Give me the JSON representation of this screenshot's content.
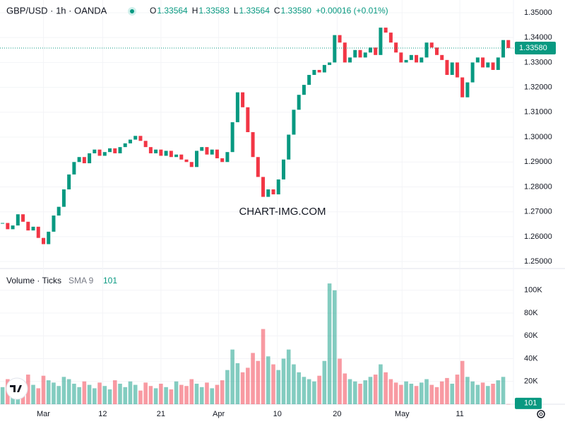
{
  "chart_data": [
    {
      "type": "candlestick",
      "title": "GBP/USD · 1h · OANDA",
      "quote": [
        {
          "label": "O",
          "value": "1.33564"
        },
        {
          "label": "H",
          "value": "1.33583"
        },
        {
          "label": "L",
          "value": "1.33564"
        },
        {
          "label": "C",
          "value": "1.33580"
        }
      ],
      "change": "+0.00016 (+0.01%)",
      "watermark": "CHART-IMG.COM",
      "up_color": "#089981",
      "down_color": "#f23645",
      "values": [
        1.2655,
        1.263,
        1.2645,
        1.269,
        1.266,
        1.2625,
        1.264,
        1.2595,
        1.257,
        1.262,
        1.2685,
        1.272,
        1.279,
        1.285,
        1.29,
        1.292,
        1.2895,
        1.2935,
        1.295,
        1.2925,
        1.294,
        1.2955,
        1.2935,
        1.296,
        1.2975,
        1.299,
        1.3005,
        1.2985,
        1.296,
        1.2935,
        1.295,
        1.2925,
        1.2945,
        1.292,
        1.293,
        1.291,
        1.29,
        1.288,
        1.2945,
        1.296,
        1.293,
        1.295,
        1.2915,
        1.29,
        1.294,
        1.306,
        1.318,
        1.312,
        1.302,
        1.292,
        1.284,
        1.276,
        1.279,
        1.277,
        1.283,
        1.291,
        1.301,
        1.311,
        1.317,
        1.321,
        1.325,
        1.327,
        1.326,
        1.329,
        1.33,
        1.341,
        1.338,
        1.33,
        1.332,
        1.335,
        1.332,
        1.334,
        1.336,
        1.333,
        1.344,
        1.342,
        1.338,
        1.334,
        1.33,
        1.331,
        1.333,
        1.33,
        1.332,
        1.338,
        1.336,
        1.333,
        1.331,
        1.325,
        1.33,
        1.324,
        1.316,
        1.322,
        1.33,
        1.332,
        1.328,
        1.33,
        1.327,
        1.332,
        1.339,
        1.3358
      ],
      "xlim": [
        -0.5,
        100
      ],
      "ylim": [
        1.2472,
        1.3551
      ],
      "yticks": [
        {
          "value": 1.25,
          "label": "1.25000"
        },
        {
          "value": 1.26,
          "label": "1.26000"
        },
        {
          "value": 1.27,
          "label": "1.27000"
        },
        {
          "value": 1.28,
          "label": "1.28000"
        },
        {
          "value": 1.29,
          "label": "1.29000"
        },
        {
          "value": 1.3,
          "label": "1.30000"
        },
        {
          "value": 1.31,
          "label": "1.31000"
        },
        {
          "value": 1.32,
          "label": "1.32000"
        },
        {
          "value": 1.33,
          "label": "1.33000"
        },
        {
          "value": 1.34,
          "label": "1.34000"
        },
        {
          "value": 1.35,
          "label": "1.35000"
        }
      ]
    },
    {
      "type": "bar",
      "title": "Volume · Ticks",
      "indicator": "SMA 9",
      "values": [
        15000,
        22000,
        18000,
        12000,
        20000,
        26000,
        17000,
        14000,
        25000,
        21000,
        19000,
        16000,
        24000,
        22000,
        18000,
        15000,
        20000,
        17000,
        14000,
        19000,
        16000,
        13000,
        21000,
        18000,
        15000,
        20000,
        17000,
        12000,
        19000,
        16000,
        14000,
        18000,
        15000,
        13000,
        20000,
        17000,
        16000,
        22000,
        18000,
        15000,
        19000,
        14000,
        17000,
        21000,
        30000,
        48000,
        36000,
        28000,
        32000,
        45000,
        38000,
        66000,
        42000,
        35000,
        30000,
        40000,
        48000,
        35000,
        28000,
        24000,
        22000,
        20000,
        25000,
        38000,
        106000,
        100000,
        40000,
        27000,
        22000,
        20000,
        18000,
        21000,
        24000,
        26000,
        35000,
        28000,
        22000,
        19000,
        17000,
        20000,
        18000,
        16000,
        19000,
        22000,
        17000,
        15000,
        20000,
        23000,
        18000,
        26000,
        38000,
        24000,
        20000,
        17000,
        19000,
        16000,
        18000,
        21000,
        24000,
        101
      ],
      "xlim": [
        -0.5,
        100
      ],
      "ylim": [
        0,
        116000
      ],
      "yticks": [
        {
          "value": 20000,
          "label": "20K"
        },
        {
          "value": 40000,
          "label": "40K"
        },
        {
          "value": 60000,
          "label": "60K"
        },
        {
          "value": 80000,
          "label": "80K"
        },
        {
          "value": 100000,
          "label": "100K"
        }
      ],
      "xticks": [
        {
          "value": 8,
          "label": "Mar"
        },
        {
          "value": 19.6,
          "label": "12"
        },
        {
          "value": 31,
          "label": "21"
        },
        {
          "value": 42.3,
          "label": "Apr"
        },
        {
          "value": 53.8,
          "label": "10"
        },
        {
          "value": 65.5,
          "label": "20"
        },
        {
          "value": 78.2,
          "label": "May"
        },
        {
          "value": 89.5,
          "label": "11"
        }
      ]
    }
  ]
}
